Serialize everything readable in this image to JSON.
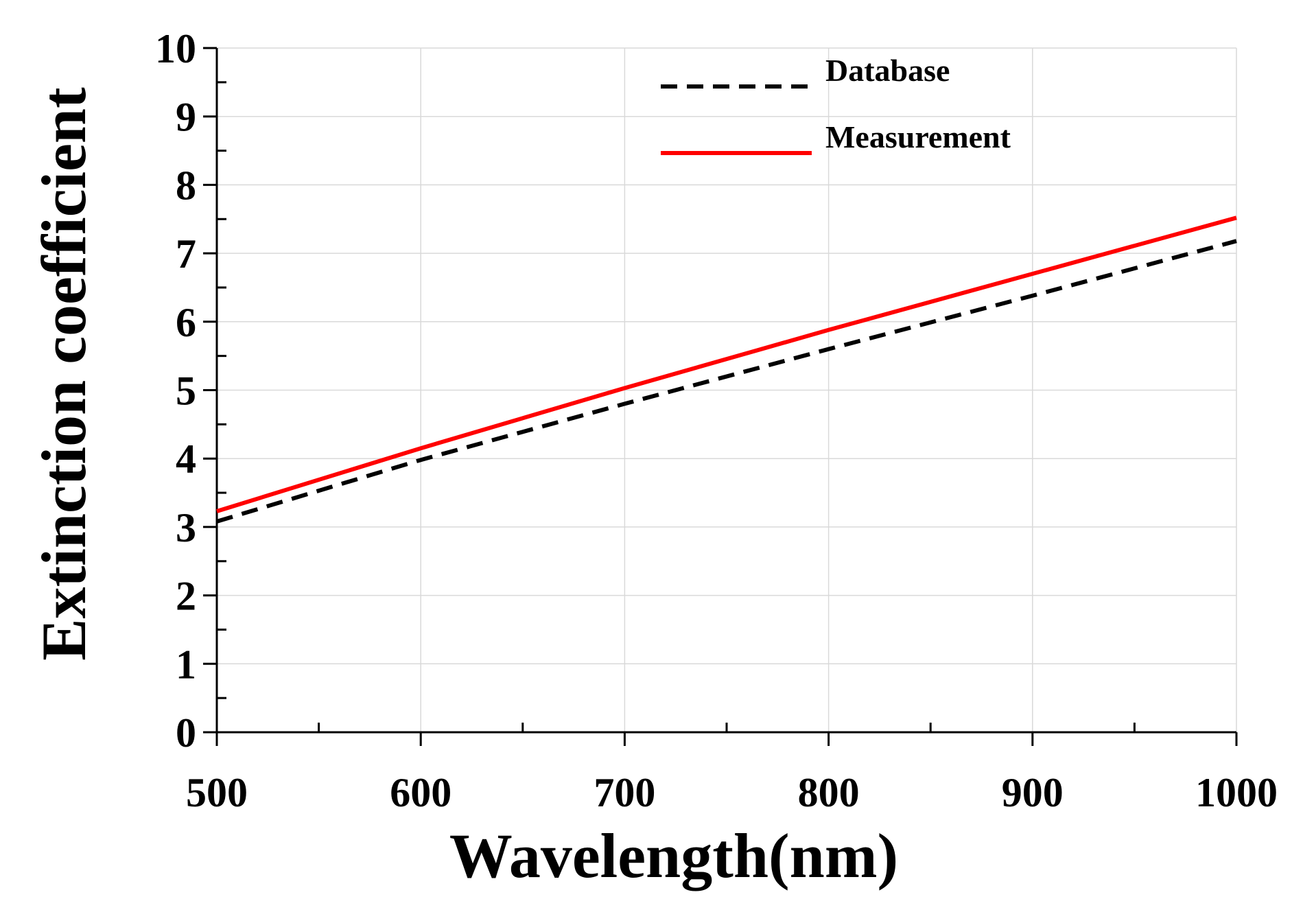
{
  "chart_data": {
    "type": "line",
    "title": "",
    "xlabel": "Wavelength(nm)",
    "ylabel": "Extinction coefficient",
    "xlim": [
      500,
      1000
    ],
    "ylim": [
      0,
      10
    ],
    "x_ticks": [
      500,
      600,
      700,
      800,
      900,
      1000
    ],
    "y_ticks": [
      0,
      1,
      2,
      3,
      4,
      5,
      6,
      7,
      8,
      9,
      10
    ],
    "grid": true,
    "legend_position": "top-right",
    "series": [
      {
        "name": "Database",
        "color": "#000000",
        "style": "dashed",
        "x": [
          500,
          600,
          700,
          800,
          900,
          1000
        ],
        "y": [
          3.08,
          3.98,
          4.8,
          5.6,
          6.38,
          7.18
        ]
      },
      {
        "name": "Measurement",
        "color": "#ff0000",
        "style": "solid",
        "x": [
          500,
          600,
          700,
          800,
          900,
          1000
        ],
        "y": [
          3.23,
          4.15,
          5.03,
          5.88,
          6.7,
          7.52
        ]
      }
    ]
  }
}
